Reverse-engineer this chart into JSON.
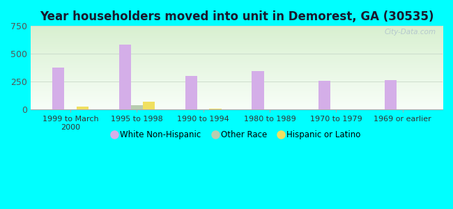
{
  "title": "Year householders moved into unit in Demorest, GA (30535)",
  "categories": [
    "1999 to March\n2000",
    "1995 to 1998",
    "1990 to 1994",
    "1980 to 1989",
    "1970 to 1979",
    "1969 or earlier"
  ],
  "series": {
    "White Non-Hispanic": [
      375,
      580,
      300,
      345,
      258,
      263
    ],
    "Other Race": [
      0,
      40,
      0,
      0,
      0,
      0
    ],
    "Hispanic or Latino": [
      25,
      70,
      5,
      0,
      0,
      0
    ]
  },
  "colors": {
    "White Non-Hispanic": "#d4aee8",
    "Other Race": "#b8ccb0",
    "Hispanic or Latino": "#f0e060"
  },
  "ylim": [
    0,
    750
  ],
  "yticks": [
    0,
    250,
    500,
    750
  ],
  "background_color": "#00ffff",
  "bar_width": 0.18,
  "watermark": "City-Data.com"
}
